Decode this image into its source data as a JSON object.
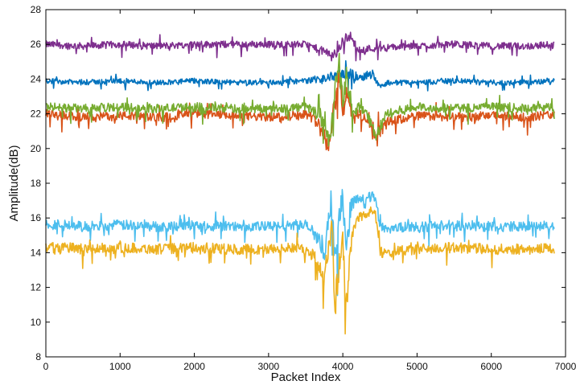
{
  "chart_data": {
    "type": "line",
    "title": "",
    "xlabel": "Packet Index",
    "ylabel": "Amplitude(dB)",
    "xlim": [
      0,
      7000
    ],
    "ylim": [
      8,
      28
    ],
    "xticks": [
      0,
      1000,
      2000,
      3000,
      4000,
      5000,
      6000,
      7000
    ],
    "yticks": [
      8,
      10,
      12,
      14,
      16,
      18,
      20,
      22,
      24,
      26,
      28
    ],
    "grid": false,
    "legend": "none",
    "series": [
      {
        "color": "#7E2F8E",
        "x": [
          0,
          500,
          1000,
          1500,
          2000,
          2500,
          3000,
          3500,
          3800,
          3900,
          4000,
          4100,
          4200,
          4500,
          5000,
          5500,
          6000,
          6500,
          6850
        ],
        "values": [
          26.0,
          25.9,
          26.0,
          25.9,
          26.0,
          26.0,
          26.0,
          26.0,
          25.5,
          25.4,
          26.2,
          26.5,
          25.7,
          25.8,
          25.9,
          26.0,
          25.9,
          25.9,
          26.0
        ],
        "band": [
          0.4,
          0.4,
          0.4,
          0.4,
          0.4,
          0.4,
          0.4,
          0.4,
          0.5,
          0.6,
          0.6,
          0.5,
          0.5,
          0.4,
          0.4,
          0.4,
          0.4,
          0.4,
          0.4
        ]
      },
      {
        "color": "#0072BD",
        "x": [
          0,
          500,
          1000,
          1500,
          2000,
          2500,
          3000,
          3500,
          3700,
          3800,
          3900,
          4000,
          4100,
          4200,
          4400,
          4500,
          4600,
          5000,
          5500,
          6000,
          6500,
          6850
        ],
        "values": [
          23.9,
          23.8,
          23.9,
          23.8,
          23.9,
          23.8,
          23.8,
          23.9,
          24.0,
          24.1,
          24.2,
          24.3,
          24.3,
          24.1,
          24.3,
          23.6,
          23.8,
          23.8,
          23.9,
          23.8,
          23.8,
          23.9
        ],
        "band": [
          0.3,
          0.3,
          0.3,
          0.3,
          0.3,
          0.3,
          0.3,
          0.3,
          0.4,
          0.5,
          0.5,
          0.6,
          0.6,
          0.5,
          0.5,
          0.4,
          0.3,
          0.3,
          0.3,
          0.3,
          0.3,
          0.3
        ]
      },
      {
        "color": "#D95319",
        "x": [
          0,
          500,
          1000,
          1500,
          2000,
          2500,
          3000,
          3500,
          3700,
          3800,
          3850,
          3900,
          3950,
          4000,
          4050,
          4100,
          4150,
          4200,
          4300,
          4400,
          4450,
          4500,
          4600,
          5000,
          5500,
          6000,
          6500,
          6850
        ],
        "values": [
          22.0,
          21.8,
          21.9,
          21.8,
          22.0,
          21.9,
          21.8,
          22.0,
          21.5,
          20.0,
          21.5,
          23.0,
          24.5,
          22.0,
          23.5,
          22.5,
          21.5,
          22.0,
          21.8,
          21.0,
          20.5,
          21.0,
          21.5,
          21.9,
          21.8,
          21.9,
          21.8,
          22.0
        ],
        "band": [
          0.5,
          0.5,
          0.5,
          0.5,
          0.5,
          0.5,
          0.5,
          0.5,
          0.7,
          1.0,
          1.2,
          1.2,
          1.2,
          1.5,
          1.2,
          1.0,
          0.8,
          0.7,
          0.6,
          0.6,
          0.8,
          0.8,
          0.6,
          0.5,
          0.5,
          0.5,
          0.5,
          0.5
        ]
      },
      {
        "color": "#77AC30",
        "x": [
          0,
          500,
          1000,
          1500,
          2000,
          2500,
          3000,
          3500,
          3700,
          3800,
          3850,
          3900,
          3950,
          4000,
          4050,
          4100,
          4150,
          4200,
          4300,
          4400,
          4450,
          4500,
          4600,
          5000,
          5500,
          6000,
          6500,
          6850
        ],
        "values": [
          22.4,
          22.3,
          22.4,
          22.3,
          22.4,
          22.3,
          22.3,
          22.4,
          22.0,
          20.5,
          21.5,
          23.5,
          25.0,
          22.5,
          24.0,
          23.0,
          22.0,
          22.4,
          22.2,
          21.3,
          20.5,
          21.3,
          22.0,
          22.4,
          22.3,
          22.4,
          22.3,
          22.4
        ],
        "band": [
          0.5,
          0.5,
          0.5,
          0.5,
          0.5,
          0.5,
          0.5,
          0.5,
          0.7,
          1.0,
          1.2,
          1.2,
          1.2,
          1.6,
          1.2,
          1.0,
          0.8,
          0.7,
          0.6,
          0.6,
          0.8,
          0.8,
          0.6,
          0.5,
          0.5,
          0.5,
          0.5,
          0.5
        ]
      },
      {
        "color": "#4DBEEE",
        "x": [
          0,
          500,
          1000,
          1500,
          2000,
          2500,
          3000,
          3500,
          3650,
          3750,
          3800,
          3850,
          3900,
          3950,
          4000,
          4050,
          4100,
          4150,
          4200,
          4300,
          4400,
          4450,
          4500,
          4600,
          5000,
          5500,
          6000,
          6500,
          6850
        ],
        "values": [
          15.7,
          15.5,
          15.6,
          15.5,
          15.6,
          15.5,
          15.5,
          15.6,
          15.0,
          14.0,
          15.5,
          17.0,
          13.0,
          15.5,
          17.5,
          14.0,
          16.5,
          17.0,
          17.2,
          17.0,
          17.3,
          17.0,
          15.5,
          15.4,
          15.5,
          15.6,
          15.5,
          15.5,
          15.6
        ],
        "band": [
          0.6,
          0.6,
          0.6,
          0.6,
          0.6,
          0.6,
          0.6,
          0.6,
          0.8,
          1.0,
          1.5,
          2.0,
          2.0,
          2.0,
          1.5,
          2.0,
          1.2,
          0.8,
          0.6,
          0.6,
          0.6,
          0.6,
          0.6,
          0.6,
          0.6,
          0.6,
          0.6,
          0.6,
          0.6
        ]
      },
      {
        "color": "#EDB120",
        "x": [
          0,
          500,
          1000,
          1500,
          2000,
          2500,
          3000,
          3500,
          3650,
          3750,
          3800,
          3850,
          3900,
          3950,
          4000,
          4050,
          4100,
          4150,
          4200,
          4300,
          4400,
          4450,
          4500,
          4600,
          5000,
          5500,
          6000,
          6500,
          6850
        ],
        "values": [
          14.4,
          14.2,
          14.3,
          14.2,
          14.3,
          14.2,
          14.2,
          14.3,
          13.6,
          12.5,
          14.0,
          15.5,
          11.0,
          13.5,
          15.0,
          10.5,
          14.0,
          15.5,
          16.0,
          16.2,
          16.5,
          16.0,
          14.0,
          14.0,
          14.2,
          14.3,
          14.2,
          14.2,
          14.3
        ],
        "band": [
          0.6,
          0.6,
          0.6,
          0.6,
          0.6,
          0.6,
          0.6,
          0.6,
          0.8,
          1.2,
          1.5,
          2.0,
          2.0,
          2.0,
          1.5,
          2.0,
          1.2,
          0.8,
          0.6,
          0.6,
          0.6,
          0.6,
          0.6,
          0.6,
          0.6,
          0.6,
          0.6,
          0.6,
          0.6
        ]
      }
    ]
  }
}
